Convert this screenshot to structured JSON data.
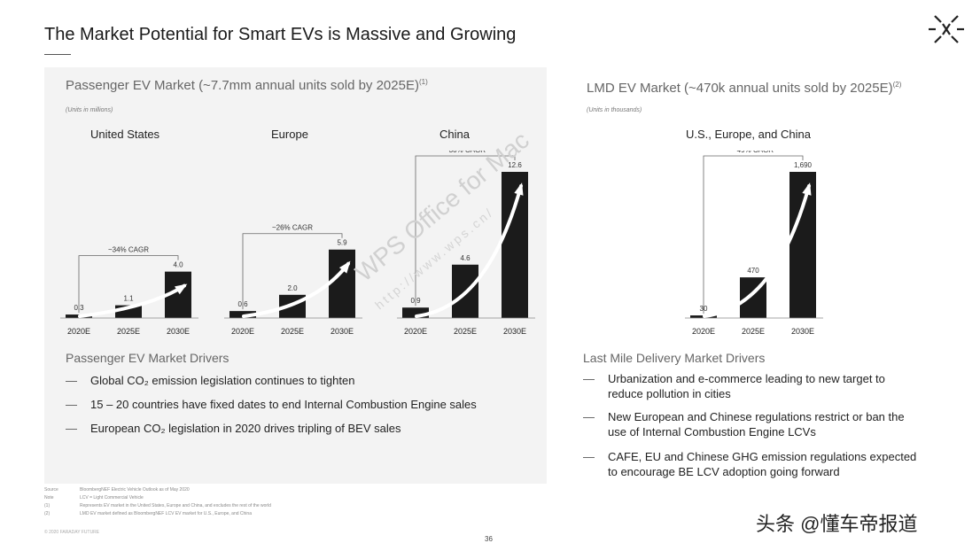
{
  "title": "The Market Potential for Smart EVs is Massive and Growing",
  "left": {
    "heading": "Passenger EV Market (~7.7mm annual units sold by 2025E)",
    "heading_note": "(1)",
    "units": "(Units in millions)",
    "drivers_title": "Passenger EV Market Drivers",
    "drivers": [
      "Global CO₂ emission legislation continues to tighten",
      "15 – 20 countries have fixed dates to end Internal Combustion Engine sales",
      "European CO₂ legislation in 2020 drives tripling of BEV sales"
    ]
  },
  "right": {
    "heading": "LMD EV Market (~470k annual units sold by 2025E)",
    "heading_note": "(2)",
    "units": "(Units in thousands)",
    "drivers_title": "Last Mile Delivery Market Drivers",
    "drivers": [
      "Urbanization and e-commerce leading to new target to reduce pollution in cities",
      "New European and Chinese regulations restrict or ban the use of Internal Combustion Engine LCVs",
      "CAFE, EU and Chinese GHG emission regulations expected to encourage BE LCV adoption going forward"
    ]
  },
  "chart_data": [
    {
      "type": "bar",
      "title": "United States",
      "cagr": "~34% CAGR",
      "categories": [
        "2020E",
        "2025E",
        "2030E"
      ],
      "values": [
        0.3,
        1.1,
        4.0
      ],
      "labels": [
        "0.3",
        "1.1",
        "4.0"
      ],
      "ylim": [
        0,
        12.6
      ]
    },
    {
      "type": "bar",
      "title": "Europe",
      "cagr": "~26% CAGR",
      "categories": [
        "2020E",
        "2025E",
        "2030E"
      ],
      "values": [
        0.6,
        2.0,
        5.9
      ],
      "labels": [
        "0.6",
        "2.0",
        "5.9"
      ],
      "ylim": [
        0,
        12.6
      ]
    },
    {
      "type": "bar",
      "title": "China",
      "cagr": "~30% CAGR",
      "categories": [
        "2020E",
        "2025E",
        "2030E"
      ],
      "values": [
        0.9,
        4.6,
        12.6
      ],
      "labels": [
        "0.9",
        "4.6",
        "12.6"
      ],
      "ylim": [
        0,
        12.6
      ]
    },
    {
      "type": "bar",
      "title": "U.S., Europe, and China",
      "cagr": "~49% CAGR",
      "categories": [
        "2020E",
        "2025E",
        "2030E"
      ],
      "values": [
        30,
        470,
        1690
      ],
      "labels": [
        "30",
        "470",
        "1,690"
      ],
      "ylim": [
        0,
        1690
      ]
    }
  ],
  "footnotes": [
    {
      "k": "Source",
      "v": "BloombergNEF Electric Vehicle Outlook as of May 2020"
    },
    {
      "k": "Note",
      "v": "LCV = Light Commercial Vehicle"
    },
    {
      "k": "(1)",
      "v": "Represents EV market in the United States, Europe and China, and excludes the rest of the world"
    },
    {
      "k": "(2)",
      "v": "LMD EV market defined as BloombergNEF LCV EV market for U.S., Europe, and China"
    }
  ],
  "copyright": "© 2020 FARADAY FUTURE",
  "page_number": "36",
  "watermark": "WPS Office for Mac",
  "watermark_url": "http://www.wps.cn/",
  "source_tag": "头条 @懂车帝报道",
  "colors": {
    "bar": "#1b1b1b",
    "panel": "#f3f3f3",
    "heading": "#666666"
  }
}
